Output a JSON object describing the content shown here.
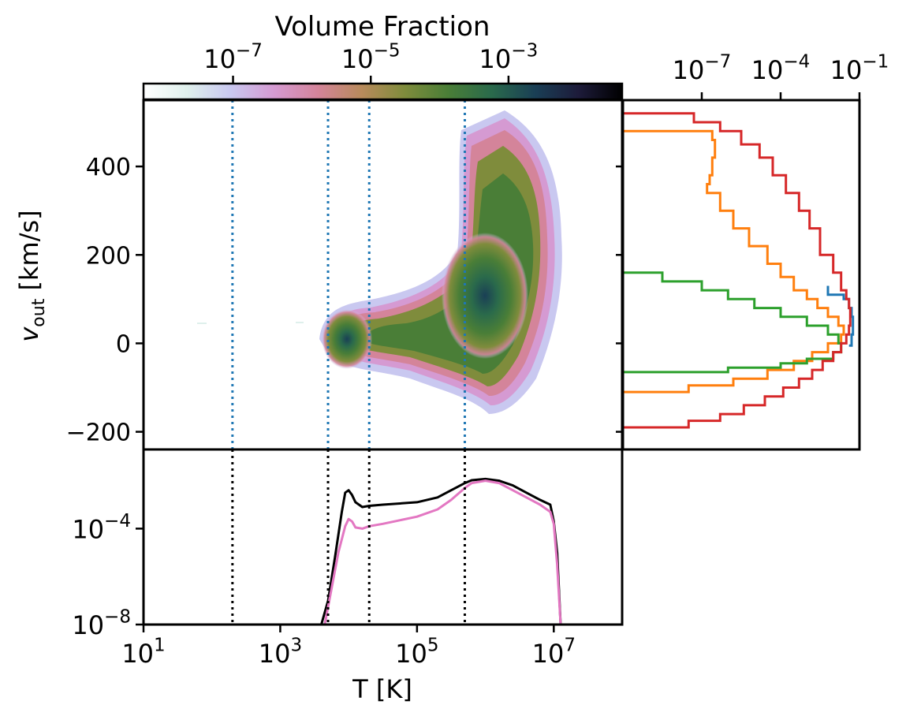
{
  "colors": {
    "vline_main": "#1f77b4",
    "vline_bottom": "#000000",
    "cmap": [
      "#ffffff",
      "#dff0ec",
      "#c9c8f0",
      "#d59ad2",
      "#d4849a",
      "#b88a5c",
      "#7f8c3c",
      "#4a7e37",
      "#2a6a4b",
      "#1a3f55",
      "#1d1b3a",
      "#000000"
    ]
  },
  "colorbar": {
    "title": "Volume Fraction",
    "scale": "log",
    "ticks": [
      "10^-7",
      "10^-5",
      "10^-3"
    ]
  },
  "chart_data": [
    {
      "id": "main",
      "type": "heatmap",
      "xlabel": "",
      "ylabel": "v_out [km/s]",
      "xscale": "log",
      "xlim": [
        10,
        100000000
      ],
      "ylim": [
        -240,
        550
      ],
      "yticks": [
        -200,
        0,
        200,
        400
      ],
      "ytick_labels": [
        "−200",
        "0",
        "200",
        "400"
      ],
      "vlines": [
        200,
        5000,
        20000,
        500000
      ],
      "regions": [
        {
          "label": "cold clump",
          "peak_logT": 3.95,
          "peak_v": 0,
          "logT_range": [
            3.6,
            4.4
          ],
          "v_range": [
            -60,
            90
          ]
        },
        {
          "label": "warm band",
          "logT_range": [
            4.0,
            6.5
          ],
          "v_range": [
            -110,
            120
          ]
        },
        {
          "label": "hot plume",
          "peak_logT": 6.0,
          "peak_v": 100,
          "logT_range": [
            5.4,
            7.1
          ],
          "v_range": [
            -170,
            480
          ]
        }
      ]
    },
    {
      "id": "bottom",
      "type": "line",
      "xlabel": "T [K]",
      "xscale": "log",
      "yscale": "log",
      "xlim": [
        10,
        100000000
      ],
      "ylim": [
        1e-08,
        0.2
      ],
      "xticks": [
        "10^1",
        "10^3",
        "10^5",
        "10^7"
      ],
      "yticks": [
        "10^-8",
        "10^-4"
      ],
      "vlines": [
        200,
        5000,
        20000,
        500000
      ],
      "series": [
        {
          "color": "#000000",
          "logT": [
            3.6,
            3.7,
            3.8,
            3.9,
            3.95,
            4.0,
            4.05,
            4.1,
            4.2,
            4.3,
            4.5,
            5.0,
            5.3,
            5.5,
            5.7,
            5.8,
            6.0,
            6.2,
            6.4,
            6.6,
            6.8,
            6.95,
            7.0,
            7.05,
            7.1
          ],
          "logY": [
            -8.0,
            -7.0,
            -5.2,
            -3.3,
            -2.5,
            -2.4,
            -2.6,
            -2.9,
            -3.1,
            -3.05,
            -3.0,
            -2.9,
            -2.7,
            -2.4,
            -2.1,
            -1.98,
            -1.93,
            -2.0,
            -2.2,
            -2.5,
            -2.8,
            -3.0,
            -3.7,
            -5.0,
            -8.0
          ]
        },
        {
          "color": "#e377c2",
          "logT": [
            3.65,
            3.75,
            3.85,
            3.95,
            4.0,
            4.05,
            4.1,
            4.2,
            4.3,
            4.5,
            5.0,
            5.3,
            5.5,
            5.7,
            5.8,
            6.0,
            6.2,
            6.4,
            6.6,
            6.8,
            6.95,
            7.0,
            7.05,
            7.1
          ],
          "logY": [
            -8.0,
            -6.5,
            -5.0,
            -3.9,
            -3.6,
            -3.7,
            -3.95,
            -4.0,
            -3.9,
            -3.8,
            -3.5,
            -3.2,
            -2.8,
            -2.3,
            -2.1,
            -2.0,
            -2.1,
            -2.4,
            -2.7,
            -3.0,
            -3.3,
            -3.8,
            -5.5,
            -8.0
          ]
        }
      ]
    },
    {
      "id": "right",
      "type": "line",
      "xscale": "log",
      "xlim": [
        1e-10,
        0.1
      ],
      "xticks": [
        "10^-7",
        "10^-4",
        "10^-1"
      ],
      "ylim": [
        -240,
        550
      ],
      "series": [
        {
          "color": "#1f77b4",
          "v": [
            -5,
            20,
            40,
            60,
            80,
            100,
            110,
            130
          ],
          "logF": [
            -1.4,
            -1.3,
            -1.25,
            -1.25,
            -1.3,
            -1.4,
            -1.6,
            -2.2
          ]
        },
        {
          "color": "#ff7f0e",
          "v": [
            -110,
            -95,
            -80,
            -60,
            -40,
            -20,
            0,
            20,
            40,
            60,
            80,
            100,
            120,
            150,
            180,
            220,
            260,
            300,
            340,
            360,
            380,
            420,
            460,
            480,
            490
          ],
          "logF": [
            -10,
            -7.5,
            -5.8,
            -4.5,
            -3.5,
            -2.8,
            -2.2,
            -1.7,
            -1.6,
            -1.8,
            -2.2,
            -2.6,
            -3.0,
            -3.5,
            -4.0,
            -4.5,
            -5.2,
            -5.8,
            -6.3,
            -6.8,
            -6.7,
            -6.6,
            -6.5,
            -6.6,
            -10
          ]
        },
        {
          "color": "#2ca02c",
          "v": [
            -65,
            -55,
            -45,
            -35,
            -20,
            0,
            20,
            40,
            60,
            80,
            100,
            120,
            140,
            160,
            175
          ],
          "logF": [
            -10,
            -6.0,
            -4.0,
            -3.0,
            -2.0,
            -1.7,
            -1.8,
            -2.2,
            -3.0,
            -4.0,
            -5.0,
            -6.0,
            -7.0,
            -8.5,
            -10
          ]
        },
        {
          "color": "#d62728",
          "v": [
            -190,
            -175,
            -160,
            -140,
            -120,
            -100,
            -80,
            -60,
            -40,
            -20,
            0,
            20,
            40,
            60,
            80,
            100,
            120,
            160,
            200,
            260,
            300,
            340,
            380,
            420,
            450,
            480,
            500,
            520,
            530
          ],
          "logF": [
            -10,
            -7.5,
            -6.3,
            -5.4,
            -4.6,
            -3.9,
            -3.3,
            -2.8,
            -2.4,
            -2.0,
            -1.7,
            -1.5,
            -1.4,
            -1.35,
            -1.35,
            -1.4,
            -1.5,
            -1.7,
            -2.0,
            -2.5,
            -2.9,
            -3.3,
            -3.8,
            -4.3,
            -4.8,
            -5.5,
            -6.3,
            -7.3,
            -10
          ]
        }
      ]
    }
  ]
}
